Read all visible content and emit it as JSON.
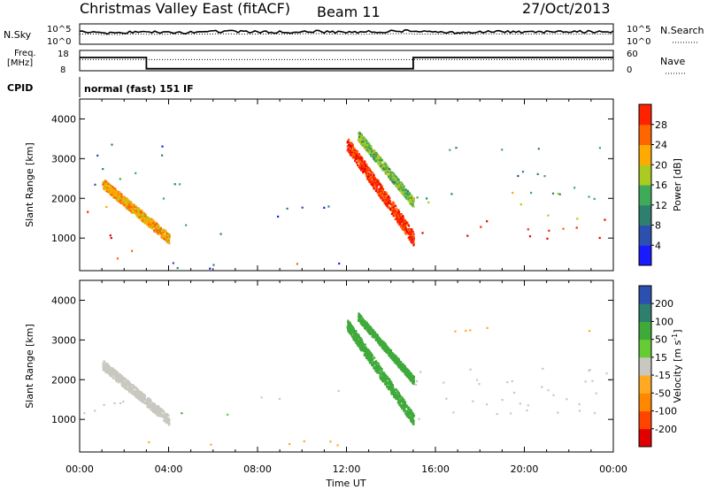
{
  "header": {
    "title": "Christmas Valley East (fitACF)",
    "beam": "Beam 11",
    "date": "27/Oct/2013"
  },
  "status_panels": {
    "nsky_label": "N.Sky",
    "nsearch_label": "N.Search",
    "noise_ticks_left": [
      "10^5",
      "10^0"
    ],
    "noise_ticks_right": [
      "10^5",
      "10^0"
    ],
    "freq_label_1": "Freq.",
    "freq_label_2": "[MHz]",
    "freq_ticks": [
      "18",
      "8"
    ],
    "nave_label": "Nave",
    "nave_ticks": [
      "60",
      "0"
    ],
    "cpid_label": "CPID",
    "cpid_value": "normal (fast) 151 IF"
  },
  "colors": {
    "power_scale": [
      "#1a1aff",
      "#2c50b0",
      "#2f7f6f",
      "#3faa5a",
      "#aacc22",
      "#ffaa00",
      "#ff6600",
      "#ff2200",
      "#e00000"
    ],
    "velocity_scale": [
      "#1a1aff",
      "#2c50b0",
      "#2f7f6f",
      "#3faa3a",
      "#66cc33",
      "#c8c8c0",
      "#ffaa22",
      "#ff8800",
      "#ff4400",
      "#e00000"
    ]
  },
  "chart_data": [
    {
      "type": "line",
      "panel": "noise",
      "series": [
        {
          "name": "N.Sky",
          "values": [
            0.62,
            0.55,
            0.58,
            0.6,
            0.57,
            0.6,
            0.62,
            0.61,
            0.6,
            0.6,
            0.63,
            0.6,
            0.58,
            0.62,
            0.65,
            0.6,
            0.58,
            0.6,
            0.62,
            0.6,
            0.6,
            0.63,
            0.62,
            0.6,
            0.64
          ]
        },
        {
          "name": "N.Search",
          "values": [
            0.5,
            0.48,
            0.5,
            0.49,
            0.5,
            0.5,
            0.51,
            0.5,
            0.5,
            0.5,
            0.52,
            0.5,
            0.49,
            0.5,
            0.52,
            0.5,
            0.5,
            0.5,
            0.51,
            0.5,
            0.5,
            0.51,
            0.5,
            0.5,
            0.52
          ]
        }
      ],
      "x": [
        0,
        1,
        2,
        3,
        4,
        5,
        6,
        7,
        8,
        9,
        10,
        11,
        12,
        13,
        14,
        15,
        16,
        17,
        18,
        19,
        20,
        21,
        22,
        23,
        24
      ]
    },
    {
      "type": "line",
      "panel": "frequency",
      "series": [
        {
          "name": "Freq.",
          "steps": [
            [
              0,
              14.5
            ],
            [
              3.0,
              14.5
            ],
            [
              3.0,
              9.0
            ],
            [
              15.0,
              9.0
            ],
            [
              15.0,
              14.5
            ],
            [
              24,
              14.5
            ]
          ]
        },
        {
          "name": "Nave",
          "steps": [
            [
              0,
              33
            ],
            [
              24,
              33
            ]
          ]
        }
      ],
      "ylim": [
        8,
        18
      ]
    },
    {
      "type": "heatmap",
      "panel": "power",
      "ylabel": "Slant Range [km]",
      "yticks": [
        "1000",
        "2000",
        "3000",
        "4000"
      ],
      "ylim": [
        180,
        4500
      ],
      "xlim": [
        0,
        24
      ],
      "colorbar_label": "Power [dB]",
      "colorbar_ticks": [
        "4",
        "8",
        "12",
        "16",
        "20",
        "24",
        "28"
      ],
      "clim": [
        0,
        32
      ],
      "regions": [
        {
          "t0": 0.0,
          "t1": 1.5,
          "r0": 1000,
          "r1": 1500,
          "v": 28
        },
        {
          "t0": 0.3,
          "t1": 2.5,
          "r0": 1400,
          "r1": 2000,
          "v": 22
        },
        {
          "t0": 1.0,
          "t1": 3.0,
          "r0": 500,
          "r1": 1000,
          "v": 26
        },
        {
          "t0": 0.5,
          "t1": 2.5,
          "r0": 2200,
          "r1": 2800,
          "v": 10
        },
        {
          "t0": 0.5,
          "t1": 4.5,
          "r0": 3100,
          "r1": 3400,
          "v": 6
        },
        {
          "t0": 2.5,
          "t1": 4.5,
          "r0": 1900,
          "r1": 2400,
          "v": 12
        },
        {
          "t0": 3.5,
          "t1": 7.0,
          "r0": 1100,
          "r1": 1400,
          "v": 10
        },
        {
          "t0": 3.0,
          "t1": 12.0,
          "r0": 200,
          "r1": 400,
          "v": 6
        },
        {
          "t0": 8.0,
          "t1": 12.5,
          "r0": 1500,
          "r1": 1900,
          "v": 6
        },
        {
          "t0": 9.5,
          "t1": 11.0,
          "r0": 300,
          "r1": 500,
          "v": 26
        },
        {
          "t0": 15.0,
          "t1": 24.0,
          "r0": 1000,
          "r1": 1500,
          "v": 28
        },
        {
          "t0": 15.0,
          "t1": 24.0,
          "r0": 1500,
          "r1": 2300,
          "v": 14
        },
        {
          "t0": 15.5,
          "t1": 24.0,
          "r0": 3200,
          "r1": 3400,
          "v": 10
        },
        {
          "t0": 16.0,
          "t1": 24.0,
          "r0": 2400,
          "r1": 2700,
          "v": 8
        }
      ],
      "bands": [
        {
          "t0": 12.0,
          "t1": 15.0,
          "r0": 3400,
          "r1": 1000,
          "w": 350,
          "v": 26
        },
        {
          "t0": 12.5,
          "t1": 15.0,
          "r0": 3600,
          "r1": 1900,
          "w": 250,
          "v": 14
        },
        {
          "t0": 1.0,
          "t1": 4.0,
          "r0": 2400,
          "r1": 1000,
          "w": 250,
          "v": 20
        }
      ]
    },
    {
      "type": "heatmap",
      "panel": "velocity",
      "xlabel": "Time UT",
      "xticks": [
        "00:00",
        "04:00",
        "08:00",
        "12:00",
        "16:00",
        "20:00",
        "00:00"
      ],
      "ylabel": "Slant Range [km]",
      "yticks": [
        "1000",
        "2000",
        "3000",
        "4000"
      ],
      "ylim": [
        180,
        4500
      ],
      "xlim": [
        0,
        24
      ],
      "colorbar_label": "Velocity [m s",
      "colorbar_label_sup": "-1",
      "colorbar_label_close": "]",
      "colorbar_ticks": [
        "200",
        "100",
        "50",
        "15",
        "-15",
        "-50",
        "-100",
        "-200"
      ],
      "regions": [
        {
          "t0": 0.0,
          "t1": 3.0,
          "r0": 1000,
          "r1": 1900,
          "v": 0
        },
        {
          "t0": 3.5,
          "t1": 7.0,
          "r0": 1100,
          "r1": 1400,
          "v": 30
        },
        {
          "t0": 3.0,
          "t1": 12.0,
          "r0": 250,
          "r1": 550,
          "v": -30
        },
        {
          "t0": 15.0,
          "t1": 24.0,
          "r0": 1000,
          "r1": 2300,
          "v": 0
        },
        {
          "t0": 15.5,
          "t1": 24.0,
          "r0": 3200,
          "r1": 3400,
          "v": -30
        },
        {
          "t0": 8.0,
          "t1": 12.0,
          "r0": 1500,
          "r1": 1900,
          "v": 0
        }
      ],
      "bands": [
        {
          "t0": 12.0,
          "t1": 15.0,
          "r0": 3400,
          "r1": 1000,
          "w": 300,
          "v": 40
        },
        {
          "t0": 12.5,
          "t1": 15.0,
          "r0": 3600,
          "r1": 2000,
          "w": 200,
          "v": 40
        },
        {
          "t0": 1.0,
          "t1": 4.0,
          "r0": 2400,
          "r1": 1000,
          "w": 250,
          "v": 0
        }
      ]
    }
  ]
}
